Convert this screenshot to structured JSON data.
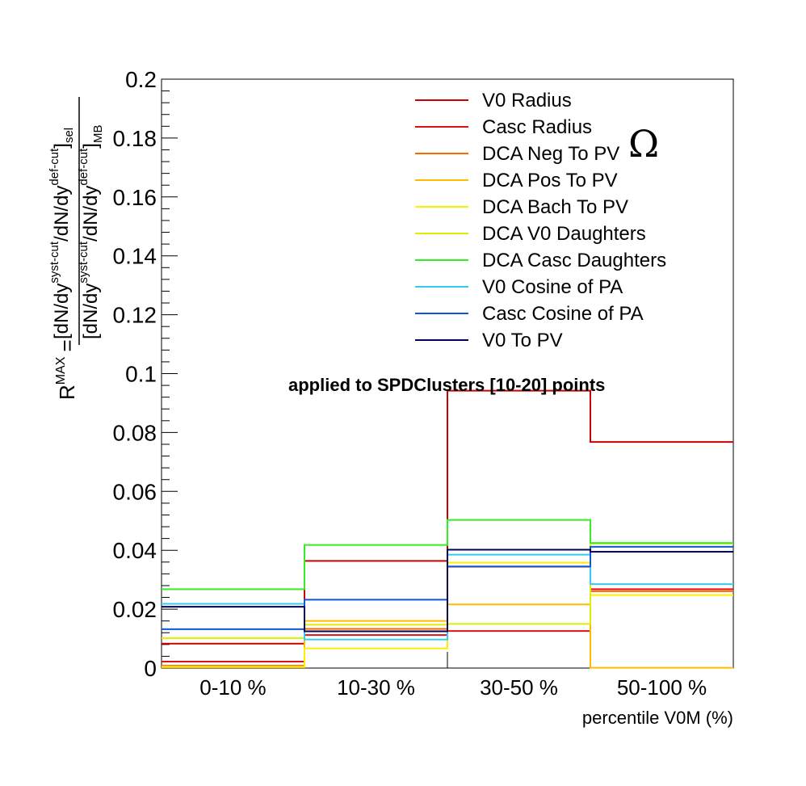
{
  "chart_data": {
    "type": "line",
    "step": true,
    "categories": [
      "0-10 %",
      "10-30 %",
      "30-50 %",
      "50-100 %"
    ],
    "xlabel": "percentile V0M (%)",
    "ylabel": {
      "lhs": "R",
      "lhs_sup": "MAX",
      "eq": "=",
      "num_main": "[dN/dy",
      "num_sup1": "syst-cut",
      "num_mid": "/dN/dy",
      "num_sup2": "def-cut",
      "num_end": "]",
      "num_sub": "sel",
      "den_main": "[dN/dy",
      "den_sup1": "syst-cut",
      "den_mid": "/dN/dy",
      "den_sup2": "def-cut",
      "den_end": "]",
      "den_sub": "MB"
    },
    "ylim": [
      0,
      0.2
    ],
    "yticks": [
      "0",
      "0.02",
      "0.04",
      "0.06",
      "0.08",
      "0.1",
      "0.12",
      "0.14",
      "0.16",
      "0.18",
      "0.2"
    ],
    "annotation": "applied to SPDClusters [10-20] points",
    "particle": "Ω",
    "legend_position": "top-right",
    "series": [
      {
        "name": "V0 Radius",
        "color": "#cc0000",
        "values": [
          0.0083,
          0.0364,
          0.0942,
          0.0768
        ]
      },
      {
        "name": "Casc Radius",
        "color": "#dd1111",
        "values": [
          0.0022,
          0.0112,
          0.0126,
          0.0268
        ]
      },
      {
        "name": "DCA Neg To PV",
        "color": "#ff6600",
        "values": [
          0.0008,
          0.0133,
          0.0344,
          0.0261
        ]
      },
      {
        "name": "DCA Pos To PV",
        "color": "#ffbb00",
        "values": [
          0.0005,
          0.016,
          0.0216,
          0.0001
        ]
      },
      {
        "name": "DCA Bach To PV",
        "color": "#ffee00",
        "values": [
          0.0003,
          0.0067,
          0.0358,
          0.0248
        ]
      },
      {
        "name": "DCA V0 Daughters",
        "color": "#ddee00",
        "values": [
          0.0102,
          0.0147,
          0.015,
          0.0423
        ]
      },
      {
        "name": "DCA Casc Daughters",
        "color": "#33ee22",
        "values": [
          0.0268,
          0.0418,
          0.0503,
          0.0425
        ]
      },
      {
        "name": "V0 Cosine of PA",
        "color": "#33ccee",
        "values": [
          0.0218,
          0.0097,
          0.0385,
          0.0285
        ]
      },
      {
        "name": "Casc Cosine of PA",
        "color": "#1155dd",
        "values": [
          0.0132,
          0.0232,
          0.0345,
          0.0412
        ]
      },
      {
        "name": "V0 To PV",
        "color": "#000055",
        "values": [
          0.0208,
          0.0125,
          0.0402,
          0.0395
        ]
      }
    ]
  }
}
